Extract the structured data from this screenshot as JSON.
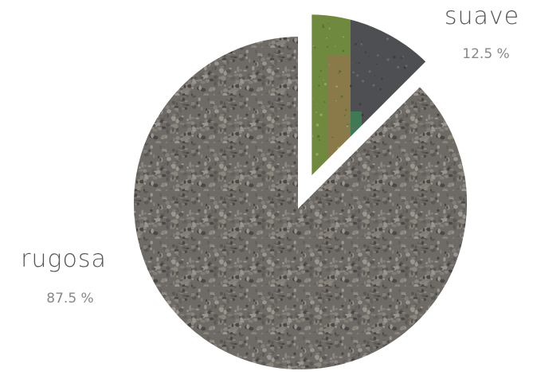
{
  "chart_data": {
    "type": "pie",
    "categories": [
      "suave",
      "rugosa"
    ],
    "values": [
      12.5,
      87.5
    ],
    "value_labels": [
      "12.5 %",
      "87.5 %"
    ],
    "colors": [
      "#5f6a4e",
      "#6e6b67"
    ]
  }
}
